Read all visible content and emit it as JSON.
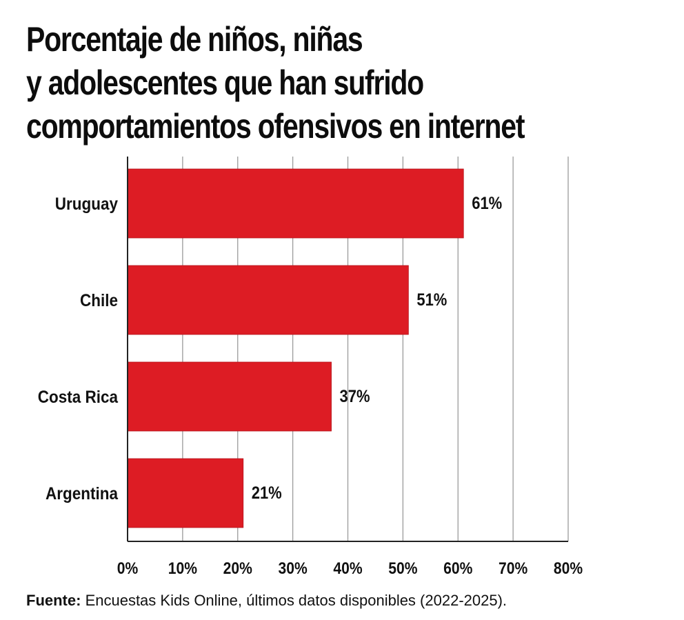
{
  "title_lines": [
    "Porcentaje de niños, niñas",
    "y adolescentes que han sufrido",
    "comportamientos ofensivos en internet"
  ],
  "source": {
    "label": "Fuente:",
    "text": " Encuestas Kids Online, últimos datos disponibles (2022-2025)."
  },
  "colors": {
    "bar": "#dd1c24",
    "grid": "#9a9a9a",
    "axis": "#222222",
    "text": "#111111"
  },
  "chart_data": {
    "type": "bar",
    "orientation": "horizontal",
    "title": "Porcentaje de niños, niñas y adolescentes que han sufrido comportamientos ofensivos en internet",
    "categories": [
      "Uruguay",
      "Chile",
      "Costa Rica",
      "Argentina"
    ],
    "values": [
      61,
      51,
      37,
      21
    ],
    "value_labels": [
      "61%",
      "51%",
      "37%",
      "21%"
    ],
    "xlim": [
      0,
      80
    ],
    "x_ticks": [
      0,
      10,
      20,
      30,
      40,
      50,
      60,
      70,
      80
    ],
    "x_tick_labels": [
      "0%",
      "10%",
      "20%",
      "30%",
      "40%",
      "50%",
      "60%",
      "70%",
      "80%"
    ],
    "xlabel": "",
    "ylabel": "",
    "grid": true,
    "legend": "none"
  }
}
